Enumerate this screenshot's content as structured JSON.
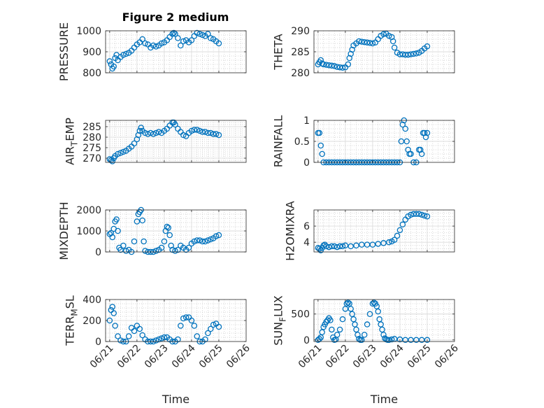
{
  "figure_title": "Figure 2 medium",
  "colors": {
    "marker": "#0072BD",
    "axis": "#262626",
    "grid": "#dcdcdc"
  },
  "chart_data": [
    {
      "type": "scatter",
      "name": "PRESSURE",
      "ylabel": "PRESSURE",
      "xlabel": "",
      "x_days": [
        21,
        22,
        23,
        24,
        25,
        26
      ],
      "xtick_labels": [],
      "ylim": [
        800,
        1000
      ],
      "yticks": [
        800,
        900,
        1000
      ],
      "ytick_labels": [
        "800",
        "900",
        "1000"
      ],
      "grid": true,
      "x": [
        21.0,
        21.05,
        21.1,
        21.15,
        21.2,
        21.25,
        21.3,
        21.4,
        21.5,
        21.6,
        21.7,
        21.8,
        21.9,
        22.0,
        22.1,
        22.2,
        22.3,
        22.4,
        22.5,
        22.6,
        22.7,
        22.8,
        22.9,
        23.0,
        23.1,
        23.2,
        23.3,
        23.35,
        23.4,
        23.5,
        23.6,
        23.7,
        23.8,
        23.9,
        24.0,
        24.1,
        24.2,
        24.3,
        24.4,
        24.5,
        24.6,
        24.7,
        24.8,
        24.9,
        25.0
      ],
      "y": [
        855,
        840,
        820,
        830,
        870,
        885,
        860,
        875,
        885,
        890,
        895,
        905,
        920,
        935,
        945,
        960,
        940,
        935,
        920,
        930,
        925,
        930,
        940,
        945,
        955,
        970,
        985,
        990,
        985,
        965,
        930,
        950,
        955,
        945,
        955,
        975,
        990,
        985,
        980,
        975,
        985,
        965,
        960,
        950,
        940
      ]
    },
    {
      "type": "scatter",
      "name": "THETA",
      "ylabel": "THETA",
      "xlabel": "",
      "x_days": [
        21,
        22,
        23,
        24,
        25,
        26
      ],
      "xtick_labels": [],
      "ylim": [
        280,
        290
      ],
      "yticks": [
        280,
        285,
        290
      ],
      "ytick_labels": [
        "280",
        "285",
        "290"
      ],
      "grid": true,
      "x": [
        21.0,
        21.05,
        21.1,
        21.15,
        21.2,
        21.3,
        21.4,
        21.5,
        21.6,
        21.7,
        21.8,
        21.9,
        22.0,
        22.1,
        22.15,
        22.2,
        22.25,
        22.3,
        22.4,
        22.5,
        22.6,
        22.7,
        22.8,
        22.9,
        23.0,
        23.1,
        23.2,
        23.3,
        23.4,
        23.5,
        23.6,
        23.7,
        23.75,
        23.8,
        23.9,
        24.0,
        24.1,
        24.2,
        24.3,
        24.4,
        24.5,
        24.6,
        24.7,
        24.8,
        24.9,
        25.0
      ],
      "y": [
        282,
        282.5,
        283,
        282.2,
        282,
        281.9,
        281.8,
        281.7,
        281.6,
        281.4,
        281.3,
        281.2,
        281.3,
        282,
        283.5,
        284.5,
        285.5,
        286.5,
        287,
        287.5,
        287.4,
        287.3,
        287.2,
        287.1,
        287,
        287.2,
        288,
        288.8,
        289.2,
        289.3,
        288.8,
        288.5,
        287.5,
        286,
        284.8,
        284.4,
        284.4,
        284.3,
        284.3,
        284.4,
        284.5,
        284.6,
        284.8,
        285.2,
        285.8,
        286.3
      ]
    },
    {
      "type": "scatter",
      "name": "AIR_TEMP",
      "ylabel": "AIR_TEMP",
      "xlabel": "",
      "x_days": [
        21,
        22,
        23,
        24,
        25,
        26
      ],
      "xtick_labels": [],
      "ylim": [
        268,
        288
      ],
      "yticks": [
        270,
        275,
        280,
        285
      ],
      "ytick_labels": [
        "270",
        "275",
        "280",
        "285"
      ],
      "grid": true,
      "x": [
        21.0,
        21.05,
        21.1,
        21.15,
        21.2,
        21.3,
        21.4,
        21.5,
        21.6,
        21.7,
        21.8,
        21.9,
        22.0,
        22.05,
        22.1,
        22.15,
        22.2,
        22.3,
        22.4,
        22.5,
        22.6,
        22.7,
        22.8,
        22.9,
        23.0,
        23.1,
        23.2,
        23.3,
        23.35,
        23.4,
        23.5,
        23.6,
        23.7,
        23.8,
        23.9,
        24.0,
        24.1,
        24.2,
        24.3,
        24.4,
        24.5,
        24.6,
        24.7,
        24.8,
        24.9,
        25.0
      ],
      "y": [
        269.5,
        269,
        268.5,
        270,
        271,
        272,
        272.5,
        273,
        273.5,
        274.5,
        275.5,
        277,
        279,
        281,
        283,
        284.5,
        283,
        282,
        281.5,
        282,
        281.5,
        282,
        282.5,
        282,
        283,
        284,
        285.5,
        287,
        287,
        286,
        284,
        282.5,
        281,
        280.5,
        282,
        283,
        283.5,
        283.5,
        283,
        282.5,
        282.5,
        282,
        282,
        281.5,
        281.5,
        281
      ]
    },
    {
      "type": "scatter",
      "name": "RAINFALL",
      "ylabel": "RAINFALL",
      "xlabel": "",
      "x_days": [
        21,
        22,
        23,
        24,
        25,
        26
      ],
      "xtick_labels": [],
      "ylim": [
        0,
        1
      ],
      "yticks": [
        0,
        0.5,
        1
      ],
      "ytick_labels": [
        "0",
        "0.5",
        "1"
      ],
      "grid": true,
      "x": [
        21.0,
        21.05,
        21.1,
        21.15,
        21.2,
        21.3,
        21.4,
        21.5,
        21.6,
        21.7,
        21.8,
        21.9,
        22.0,
        22.1,
        22.2,
        22.3,
        22.4,
        22.5,
        22.6,
        22.7,
        22.8,
        22.9,
        23.0,
        23.1,
        23.2,
        23.3,
        23.4,
        23.5,
        23.6,
        23.7,
        23.8,
        23.9,
        24.0,
        24.05,
        24.1,
        24.15,
        24.2,
        24.25,
        24.3,
        24.35,
        24.4,
        24.5,
        24.6,
        24.7,
        24.75,
        24.8,
        24.85,
        24.9,
        24.95,
        25.0
      ],
      "y": [
        0.7,
        0.7,
        0.4,
        0.2,
        0,
        0,
        0,
        0,
        0,
        0,
        0,
        0,
        0,
        0,
        0,
        0,
        0,
        0,
        0,
        0,
        0,
        0,
        0,
        0,
        0,
        0,
        0,
        0,
        0,
        0,
        0,
        0,
        0,
        0.5,
        0.9,
        1.0,
        0.8,
        0.5,
        0.3,
        0.2,
        0.2,
        0,
        0,
        0.3,
        0.3,
        0.2,
        0.7,
        0.7,
        0.6,
        0.7
      ]
    },
    {
      "type": "scatter",
      "name": "MIXDEPTH",
      "ylabel": "MIXDEPTH",
      "xlabel": "",
      "x_days": [
        21,
        22,
        23,
        24,
        25,
        26
      ],
      "xtick_labels": [],
      "ylim": [
        0,
        2000
      ],
      "yticks": [
        0,
        1000,
        2000
      ],
      "ytick_labels": [
        "0",
        "1000",
        "2000"
      ],
      "grid": true,
      "x": [
        21.0,
        21.05,
        21.1,
        21.15,
        21.2,
        21.25,
        21.3,
        21.35,
        21.4,
        21.5,
        21.6,
        21.7,
        21.8,
        21.9,
        22.0,
        22.05,
        22.1,
        22.15,
        22.2,
        22.25,
        22.3,
        22.4,
        22.5,
        22.6,
        22.7,
        22.8,
        22.9,
        23.0,
        23.05,
        23.1,
        23.15,
        23.2,
        23.25,
        23.3,
        23.4,
        23.5,
        23.6,
        23.7,
        23.8,
        23.9,
        24.0,
        24.1,
        24.2,
        24.3,
        24.4,
        24.5,
        24.6,
        24.7,
        24.8,
        24.9,
        25.0
      ],
      "y": [
        850,
        900,
        700,
        1100,
        1450,
        1550,
        1000,
        200,
        100,
        300,
        50,
        100,
        0,
        500,
        1450,
        1800,
        1900,
        2000,
        1500,
        500,
        50,
        0,
        0,
        0,
        50,
        100,
        200,
        500,
        1000,
        1200,
        1150,
        800,
        300,
        100,
        50,
        100,
        300,
        200,
        100,
        200,
        400,
        500,
        550,
        550,
        500,
        500,
        550,
        600,
        650,
        750,
        800
      ]
    },
    {
      "type": "scatter",
      "name": "H2OMIXRA",
      "ylabel": "H2OMIXRA",
      "xlabel": "",
      "x_days": [
        21,
        22,
        23,
        24,
        25,
        26
      ],
      "xtick_labels": [],
      "ylim": [
        2.8,
        8.0
      ],
      "yticks": [
        4,
        6
      ],
      "ytick_labels": [
        "4",
        "6"
      ],
      "grid": true,
      "x": [
        21.0,
        21.05,
        21.1,
        21.15,
        21.2,
        21.25,
        21.3,
        21.4,
        21.5,
        21.6,
        21.7,
        21.8,
        21.9,
        22.0,
        22.2,
        22.4,
        22.6,
        22.8,
        23.0,
        23.2,
        23.4,
        23.6,
        23.7,
        23.8,
        23.9,
        24.0,
        24.1,
        24.2,
        24.3,
        24.4,
        24.5,
        24.6,
        24.7,
        24.8,
        24.9,
        25.0
      ],
      "y": [
        3.3,
        3.2,
        3.0,
        3.3,
        3.6,
        3.7,
        3.5,
        3.4,
        3.5,
        3.5,
        3.4,
        3.5,
        3.5,
        3.6,
        3.5,
        3.6,
        3.7,
        3.7,
        3.7,
        3.8,
        3.9,
        4.0,
        4.1,
        4.3,
        4.8,
        5.5,
        6.2,
        6.8,
        7.2,
        7.4,
        7.5,
        7.5,
        7.5,
        7.4,
        7.3,
        7.2
      ]
    },
    {
      "type": "scatter",
      "name": "TERR_MSL",
      "ylabel": "TERR_MSL",
      "xlabel": "Time",
      "x_days": [
        21,
        22,
        23,
        24,
        25,
        26
      ],
      "xtick_labels": [
        "06/21",
        "06/22",
        "06/23",
        "06/24",
        "06/25",
        "06/26"
      ],
      "ylim": [
        0,
        400
      ],
      "yticks": [
        0,
        200,
        400
      ],
      "ytick_labels": [
        "0",
        "200",
        "400"
      ],
      "grid": true,
      "x": [
        21.0,
        21.05,
        21.1,
        21.15,
        21.2,
        21.3,
        21.4,
        21.5,
        21.6,
        21.7,
        21.8,
        21.9,
        22.0,
        22.1,
        22.2,
        22.3,
        22.4,
        22.5,
        22.6,
        22.7,
        22.8,
        22.9,
        23.0,
        23.1,
        23.2,
        23.3,
        23.4,
        23.5,
        23.6,
        23.7,
        23.8,
        23.9,
        24.0,
        24.1,
        24.2,
        24.3,
        24.4,
        24.5,
        24.6,
        24.7,
        24.8,
        24.9,
        25.0
      ],
      "y": [
        200,
        300,
        330,
        270,
        150,
        50,
        10,
        0,
        0,
        50,
        130,
        100,
        150,
        120,
        60,
        20,
        0,
        0,
        0,
        10,
        20,
        30,
        40,
        40,
        20,
        0,
        0,
        20,
        150,
        220,
        230,
        230,
        200,
        150,
        50,
        0,
        0,
        20,
        80,
        120,
        160,
        170,
        140
      ]
    },
    {
      "type": "scatter",
      "name": "SUN_FLUX",
      "ylabel": "SUN_FLUX",
      "xlabel": "Time",
      "x_days": [
        21,
        22,
        23,
        24,
        25,
        26
      ],
      "xtick_labels": [
        "06/21",
        "06/22",
        "06/23",
        "06/24",
        "06/25",
        "06/26"
      ],
      "ylim": [
        -30,
        780
      ],
      "yticks": [
        0,
        500
      ],
      "ytick_labels": [
        "0",
        "500"
      ],
      "grid": true,
      "x": [
        21.0,
        21.05,
        21.1,
        21.15,
        21.2,
        21.25,
        21.3,
        21.35,
        21.4,
        21.45,
        21.5,
        21.55,
        21.6,
        21.65,
        21.7,
        21.8,
        21.9,
        22.0,
        22.05,
        22.1,
        22.15,
        22.2,
        22.25,
        22.3,
        22.35,
        22.4,
        22.45,
        22.5,
        22.55,
        22.6,
        22.7,
        22.8,
        22.9,
        23.0,
        23.05,
        23.1,
        23.15,
        23.2,
        23.25,
        23.3,
        23.35,
        23.4,
        23.45,
        23.5,
        23.55,
        23.6,
        23.7,
        23.8,
        24.0,
        24.2,
        24.4,
        24.6,
        24.8,
        25.0
      ],
      "y": [
        0,
        20,
        50,
        150,
        250,
        300,
        350,
        380,
        420,
        380,
        200,
        50,
        0,
        10,
        100,
        200,
        400,
        600,
        700,
        720,
        700,
        600,
        500,
        400,
        300,
        200,
        100,
        20,
        0,
        0,
        100,
        300,
        500,
        700,
        720,
        700,
        650,
        550,
        400,
        300,
        200,
        100,
        30,
        10,
        0,
        0,
        10,
        20,
        10,
        0,
        0,
        0,
        0,
        0
      ]
    }
  ]
}
